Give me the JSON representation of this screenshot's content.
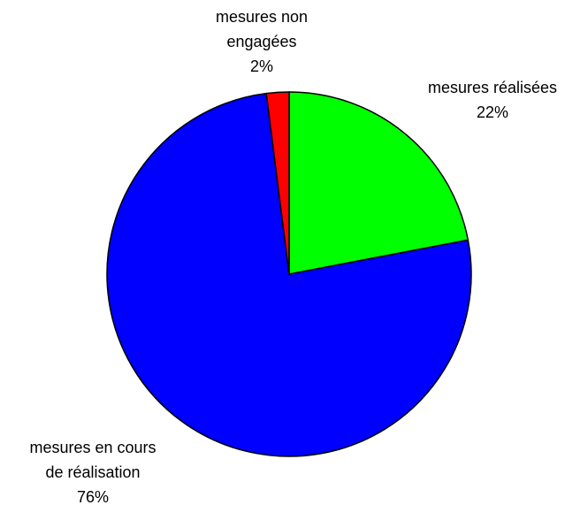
{
  "chart_data": {
    "type": "pie",
    "categories": [
      [
        "mesures réalisées"
      ],
      [
        "mesures en cours",
        "de réalisation"
      ],
      [
        "mesures non",
        "engagées"
      ]
    ],
    "values": [
      22,
      76,
      2
    ],
    "value_labels": [
      "22%",
      "76%",
      "2%"
    ],
    "colors": [
      "#00ff00",
      "#0000ff",
      "#ff0000"
    ]
  }
}
